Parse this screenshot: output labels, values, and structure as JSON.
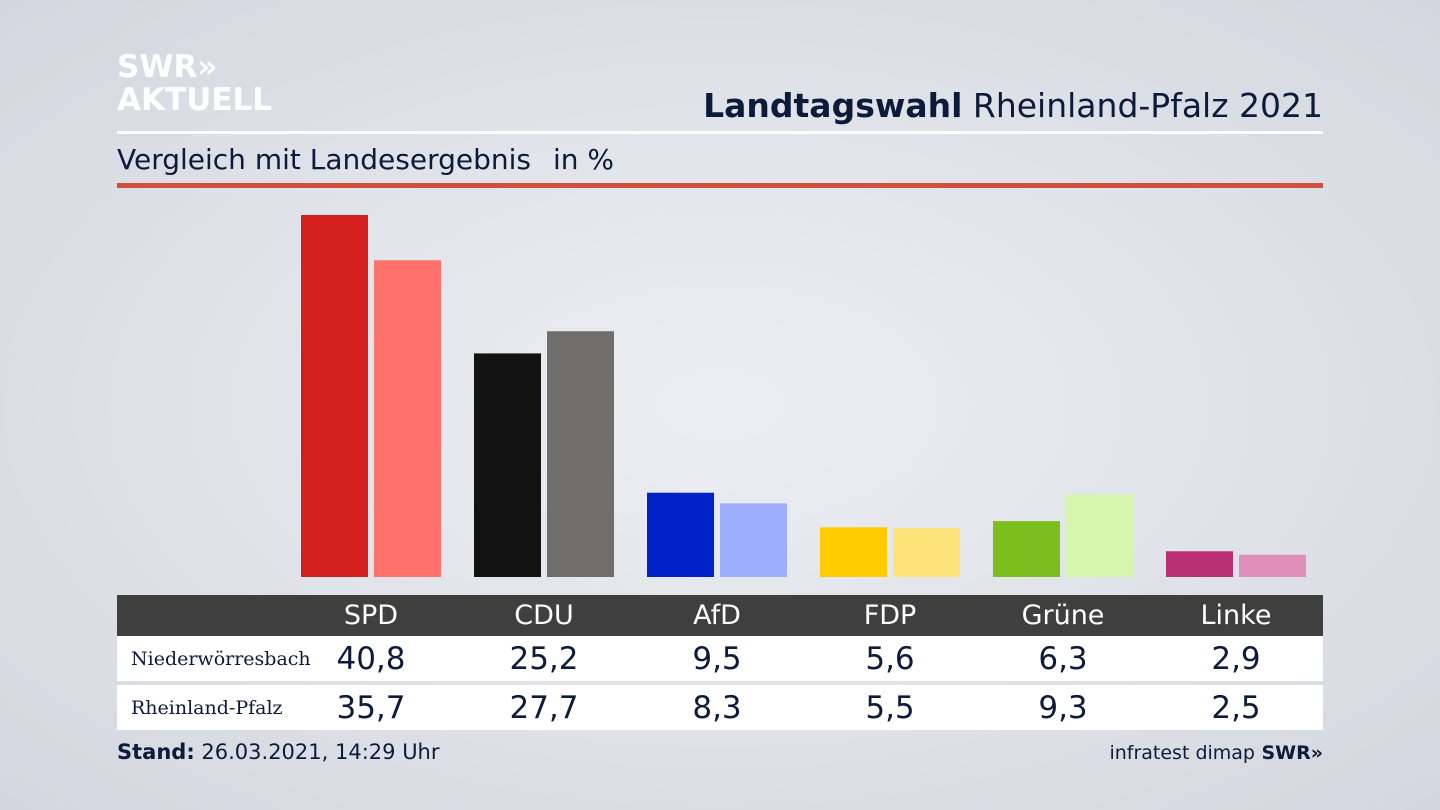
{
  "brand": {
    "line1": "SWR»",
    "line2": "AKTUELL"
  },
  "header": {
    "title_bold": "Landtagswahl",
    "title_rest": "Rheinland-Pfalz 2021"
  },
  "subtitle": {
    "text": "Vergleich mit Landesergebnis",
    "unit": "in %"
  },
  "chart_data": {
    "type": "bar",
    "title": "Landtagswahl Rheinland-Pfalz 2021",
    "subtitle": "Vergleich mit Landesergebnis",
    "ylabel": "in %",
    "ylim": [
      0,
      40.8
    ],
    "categories": [
      "SPD",
      "CDU",
      "AfD",
      "FDP",
      "Grüne",
      "Linke"
    ],
    "series": [
      {
        "name": "Niederwörresbach",
        "values": [
          40.8,
          25.2,
          9.5,
          5.6,
          6.3,
          2.9
        ],
        "colors": [
          "#d41f1f",
          "#121212",
          "#0022c8",
          "#ffcc00",
          "#7cbe1e",
          "#b92e74"
        ]
      },
      {
        "name": "Rheinland-Pfalz",
        "values": [
          35.7,
          27.7,
          8.3,
          5.5,
          9.3,
          2.5
        ],
        "colors": [
          "#ff726b",
          "#6f6e6c",
          "#9fadff",
          "#fee37a",
          "#d6f5ad",
          "#e08fbb"
        ]
      }
    ],
    "grid": false,
    "legend": "table-below"
  },
  "table": {
    "headers": [
      "SPD",
      "CDU",
      "AfD",
      "FDP",
      "Grüne",
      "Linke"
    ],
    "rows": [
      {
        "label": "Niederwörresbach",
        "cells": [
          "40,8",
          "25,2",
          "9,5",
          "5,6",
          "6,3",
          "2,9"
        ]
      },
      {
        "label": "Rheinland-Pfalz",
        "cells": [
          "35,7",
          "27,7",
          "8,3",
          "5,5",
          "9,3",
          "2,5"
        ]
      }
    ]
  },
  "footer": {
    "stand_label": "Stand:",
    "stand_value": "26.03.2021, 14:29 Uhr",
    "source": "infratest dimap",
    "logo": "SWR»"
  }
}
